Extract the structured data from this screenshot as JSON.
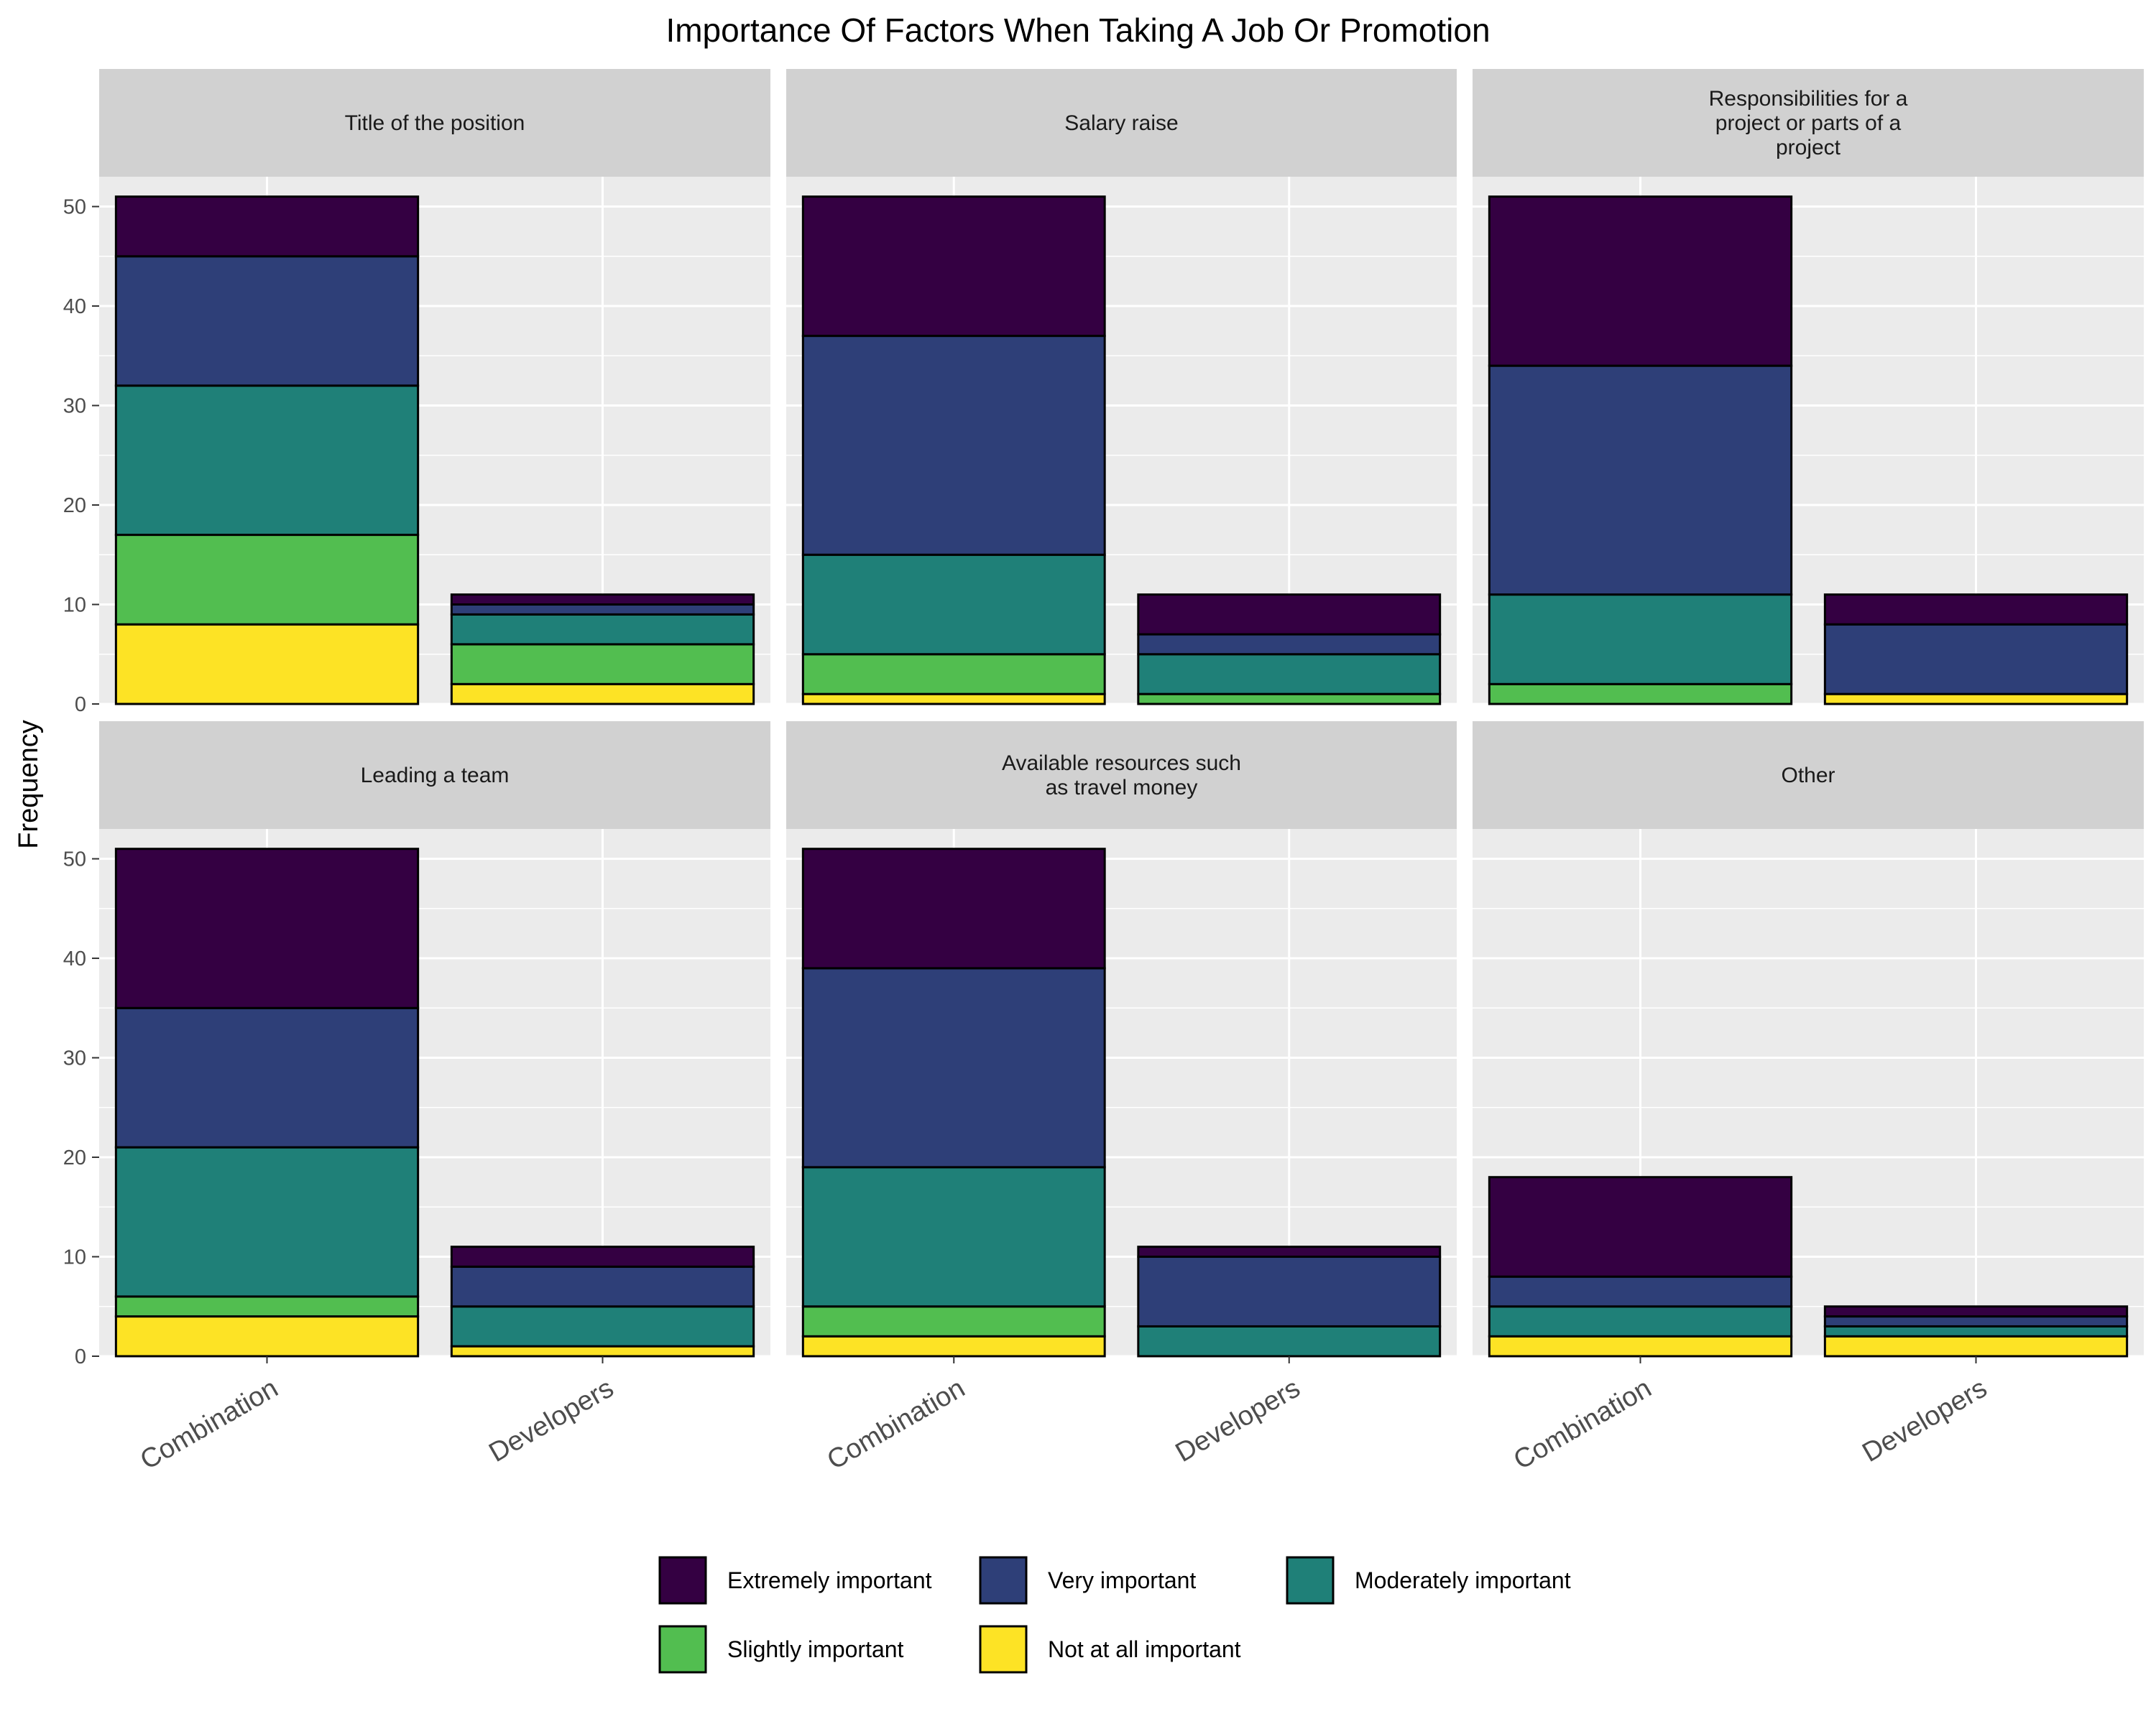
{
  "chart_data": {
    "type": "bar",
    "stacked": true,
    "title": "Importance Of Factors When Taking A Job Or Promotion",
    "xlabel": "",
    "ylabel": "Frequency",
    "ylim": [
      0,
      53
    ],
    "yticks": [
      0,
      10,
      20,
      30,
      40,
      50
    ],
    "grid": true,
    "legend_position": "bottom",
    "categories": [
      "Combination",
      "Developers"
    ],
    "levels": [
      {
        "name": "Extremely important",
        "color": "#340042"
      },
      {
        "name": "Very important",
        "color": "#2E3F78"
      },
      {
        "name": "Moderately important",
        "color": "#1F8078"
      },
      {
        "name": "Slightly important",
        "color": "#52BE50"
      },
      {
        "name": "Not at all important",
        "color": "#FDE325"
      }
    ],
    "stack_order_bottom_to_top": [
      "Not at all important",
      "Slightly important",
      "Moderately important",
      "Very important",
      "Extremely important"
    ],
    "panels": [
      {
        "label": "Title of the position",
        "values": {
          "Combination": {
            "Extremely important": 6,
            "Very important": 13,
            "Moderately important": 15,
            "Slightly important": 9,
            "Not at all important": 8
          },
          "Developers": {
            "Extremely important": 1,
            "Very important": 1,
            "Moderately important": 3,
            "Slightly important": 4,
            "Not at all important": 2
          }
        }
      },
      {
        "label": "Salary raise",
        "values": {
          "Combination": {
            "Extremely important": 14,
            "Very important": 22,
            "Moderately important": 10,
            "Slightly important": 4,
            "Not at all important": 1
          },
          "Developers": {
            "Extremely important": 4,
            "Very important": 2,
            "Moderately important": 4,
            "Slightly important": 1,
            "Not at all important": 0
          }
        }
      },
      {
        "label": "Responsibilities for a\nproject or parts of a\nproject",
        "values": {
          "Combination": {
            "Extremely important": 17,
            "Very important": 23,
            "Moderately important": 9,
            "Slightly important": 2,
            "Not at all important": 0
          },
          "Developers": {
            "Extremely important": 3,
            "Very important": 7,
            "Moderately important": 0,
            "Slightly important": 0,
            "Not at all important": 1
          }
        }
      },
      {
        "label": "Leading a team",
        "values": {
          "Combination": {
            "Extremely important": 16,
            "Very important": 14,
            "Moderately important": 15,
            "Slightly important": 2,
            "Not at all important": 4
          },
          "Developers": {
            "Extremely important": 2,
            "Very important": 4,
            "Moderately important": 4,
            "Slightly important": 0,
            "Not at all important": 1
          }
        }
      },
      {
        "label": "Available resources such\nas travel money",
        "values": {
          "Combination": {
            "Extremely important": 12,
            "Very important": 20,
            "Moderately important": 14,
            "Slightly important": 3,
            "Not at all important": 2
          },
          "Developers": {
            "Extremely important": 1,
            "Very important": 7,
            "Moderately important": 3,
            "Slightly important": 0,
            "Not at all important": 0
          }
        }
      },
      {
        "label": "Other",
        "values": {
          "Combination": {
            "Extremely important": 10,
            "Very important": 3,
            "Moderately important": 3,
            "Slightly important": 0,
            "Not at all important": 2
          },
          "Developers": {
            "Extremely important": 1,
            "Very important": 1,
            "Moderately important": 1,
            "Slightly important": 0,
            "Not at all important": 2
          }
        }
      }
    ]
  }
}
